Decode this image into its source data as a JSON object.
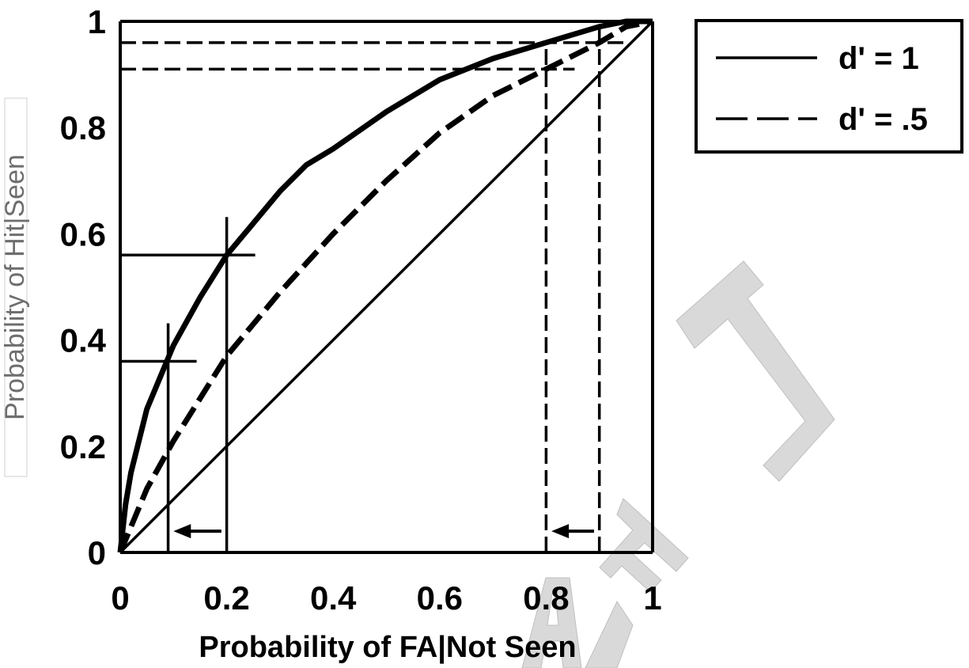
{
  "chart_data": {
    "type": "line",
    "xlabel": "Probability of FA|Not Seen",
    "ylabel": "Probability of Hit|Seen",
    "xlim": [
      0,
      1
    ],
    "ylim": [
      0,
      1
    ],
    "x_ticks": [
      "0",
      "0.2",
      "0.4",
      "0.6",
      "0.8",
      "1"
    ],
    "y_ticks": [
      "0",
      "0.2",
      "0.4",
      "0.6",
      "0.8",
      "1"
    ],
    "grid": false,
    "legend_position": "top-right, outside plot",
    "series": [
      {
        "name": "d' = 1",
        "style": "solid",
        "x": [
          0,
          0.01,
          0.02,
          0.05,
          0.1,
          0.15,
          0.2,
          0.25,
          0.3,
          0.35,
          0.4,
          0.5,
          0.6,
          0.7,
          0.8,
          0.9,
          0.95,
          1
        ],
        "y": [
          0,
          0.09,
          0.15,
          0.27,
          0.39,
          0.48,
          0.56,
          0.62,
          0.68,
          0.73,
          0.76,
          0.83,
          0.89,
          0.93,
          0.96,
          0.99,
          1,
          1
        ]
      },
      {
        "name": "d' = .5",
        "style": "dashed",
        "x": [
          0,
          0.05,
          0.1,
          0.2,
          0.3,
          0.4,
          0.5,
          0.6,
          0.7,
          0.8,
          0.9,
          0.95,
          1
        ],
        "y": [
          0,
          0.12,
          0.21,
          0.37,
          0.49,
          0.6,
          0.7,
          0.79,
          0.86,
          0.91,
          0.96,
          0.99,
          1
        ]
      },
      {
        "name": "",
        "style": "solid-thin",
        "x": [
          0,
          1
        ],
        "y": [
          0,
          1
        ]
      }
    ],
    "annotations": {
      "solid_reference_points": [
        {
          "x": 0.09,
          "y": 0.36
        },
        {
          "x": 0.2,
          "y": 0.56
        }
      ],
      "dashed_reference_points": [
        {
          "x": 0.8,
          "y": 0.91
        },
        {
          "x": 0.9,
          "y": 0.96
        }
      ],
      "arrows": [
        {
          "from_x": 0.19,
          "to_x": 0.1,
          "y": 0.04
        },
        {
          "from_x": 0.89,
          "to_x": 0.81,
          "y": 0.04
        }
      ]
    }
  },
  "watermark": "DRAFT",
  "colors": {
    "line": "#000000",
    "watermark": "#d9d9d9",
    "ylabel": "#6e6e6e",
    "background": "#ffffff"
  }
}
